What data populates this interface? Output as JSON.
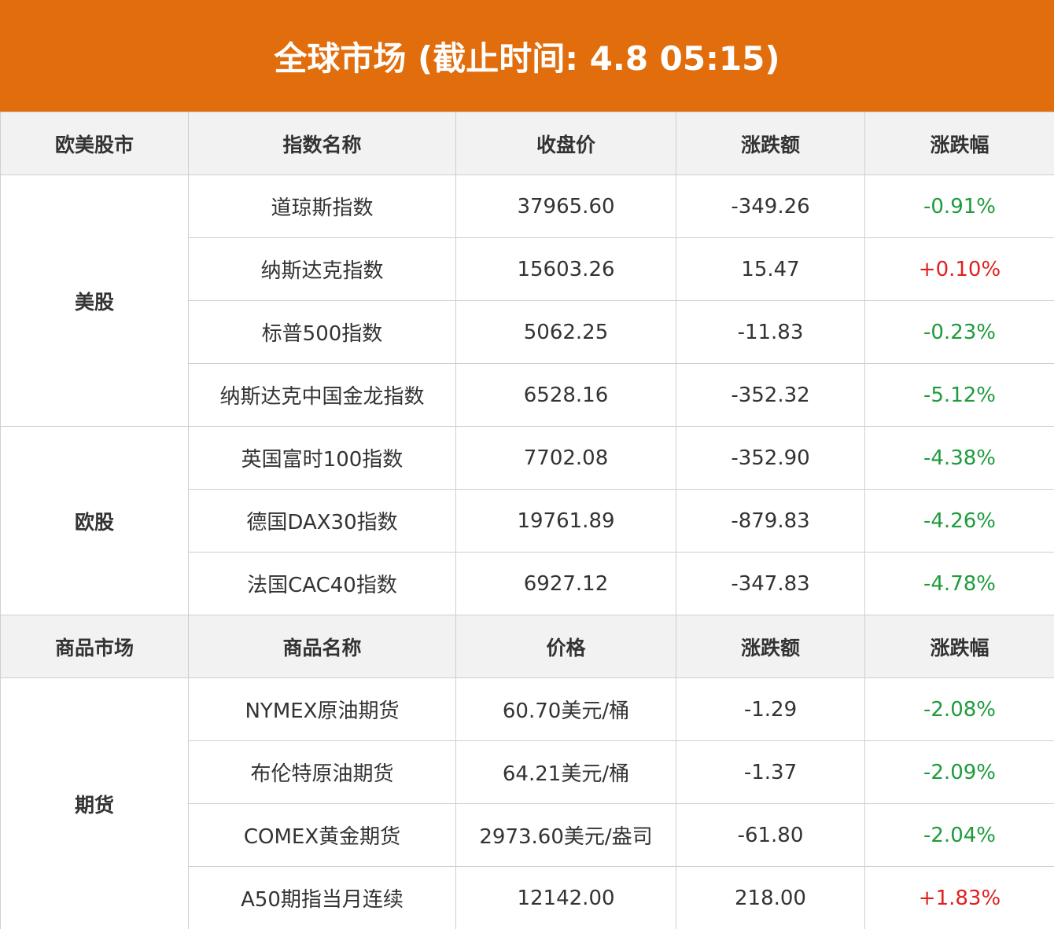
{
  "header": {
    "title": "全球市场 (截止时间: 4.8 05:15)"
  },
  "sections": [
    {
      "columns": [
        "欧美股市",
        "指数名称",
        "收盘价",
        "涨跌额",
        "涨跌幅"
      ],
      "groups": [
        {
          "label": "美股",
          "rows": [
            {
              "cells": [
                "道琼斯指数",
                "37965.60",
                "-349.26",
                "-0.91%"
              ],
              "color": "#1e9b3c"
            },
            {
              "cells": [
                "纳斯达克指数",
                "15603.26",
                "15.47",
                "+0.10%"
              ],
              "color": "#e0201e"
            },
            {
              "cells": [
                "标普500指数",
                "5062.25",
                "-11.83",
                "-0.23%"
              ],
              "color": "#1e9b3c"
            },
            {
              "cells": [
                "纳斯达克中国金龙指数",
                "6528.16",
                "-352.32",
                "-5.12%"
              ],
              "color": "#1e9b3c"
            }
          ]
        },
        {
          "label": "欧股",
          "rows": [
            {
              "cells": [
                "英国富时100指数",
                "7702.08",
                "-352.90",
                "-4.38%"
              ],
              "color": "#1e9b3c"
            },
            {
              "cells": [
                "德国DAX30指数",
                "19761.89",
                "-879.83",
                "-4.26%"
              ],
              "color": "#1e9b3c"
            },
            {
              "cells": [
                "法国CAC40指数",
                "6927.12",
                "-347.83",
                "-4.78%"
              ],
              "color": "#1e9b3c"
            }
          ]
        }
      ]
    },
    {
      "columns": [
        "商品市场",
        "商品名称",
        "价格",
        "涨跌额",
        "涨跌幅"
      ],
      "groups": [
        {
          "label": "期货",
          "rows": [
            {
              "cells": [
                "NYMEX原油期货",
                "60.70美元/桶",
                "-1.29",
                "-2.08%"
              ],
              "color": "#1e9b3c"
            },
            {
              "cells": [
                "布伦特原油期货",
                "64.21美元/桶",
                "-1.37",
                "-2.09%"
              ],
              "color": "#1e9b3c"
            },
            {
              "cells": [
                "COMEX黄金期货",
                "2973.60美元/盎司",
                "-61.80",
                "-2.04%"
              ],
              "color": "#1e9b3c"
            },
            {
              "cells": [
                "A50期指当月连续",
                "12142.00",
                "218.00",
                "+1.83%"
              ],
              "color": "#e0201e"
            }
          ]
        }
      ]
    }
  ]
}
